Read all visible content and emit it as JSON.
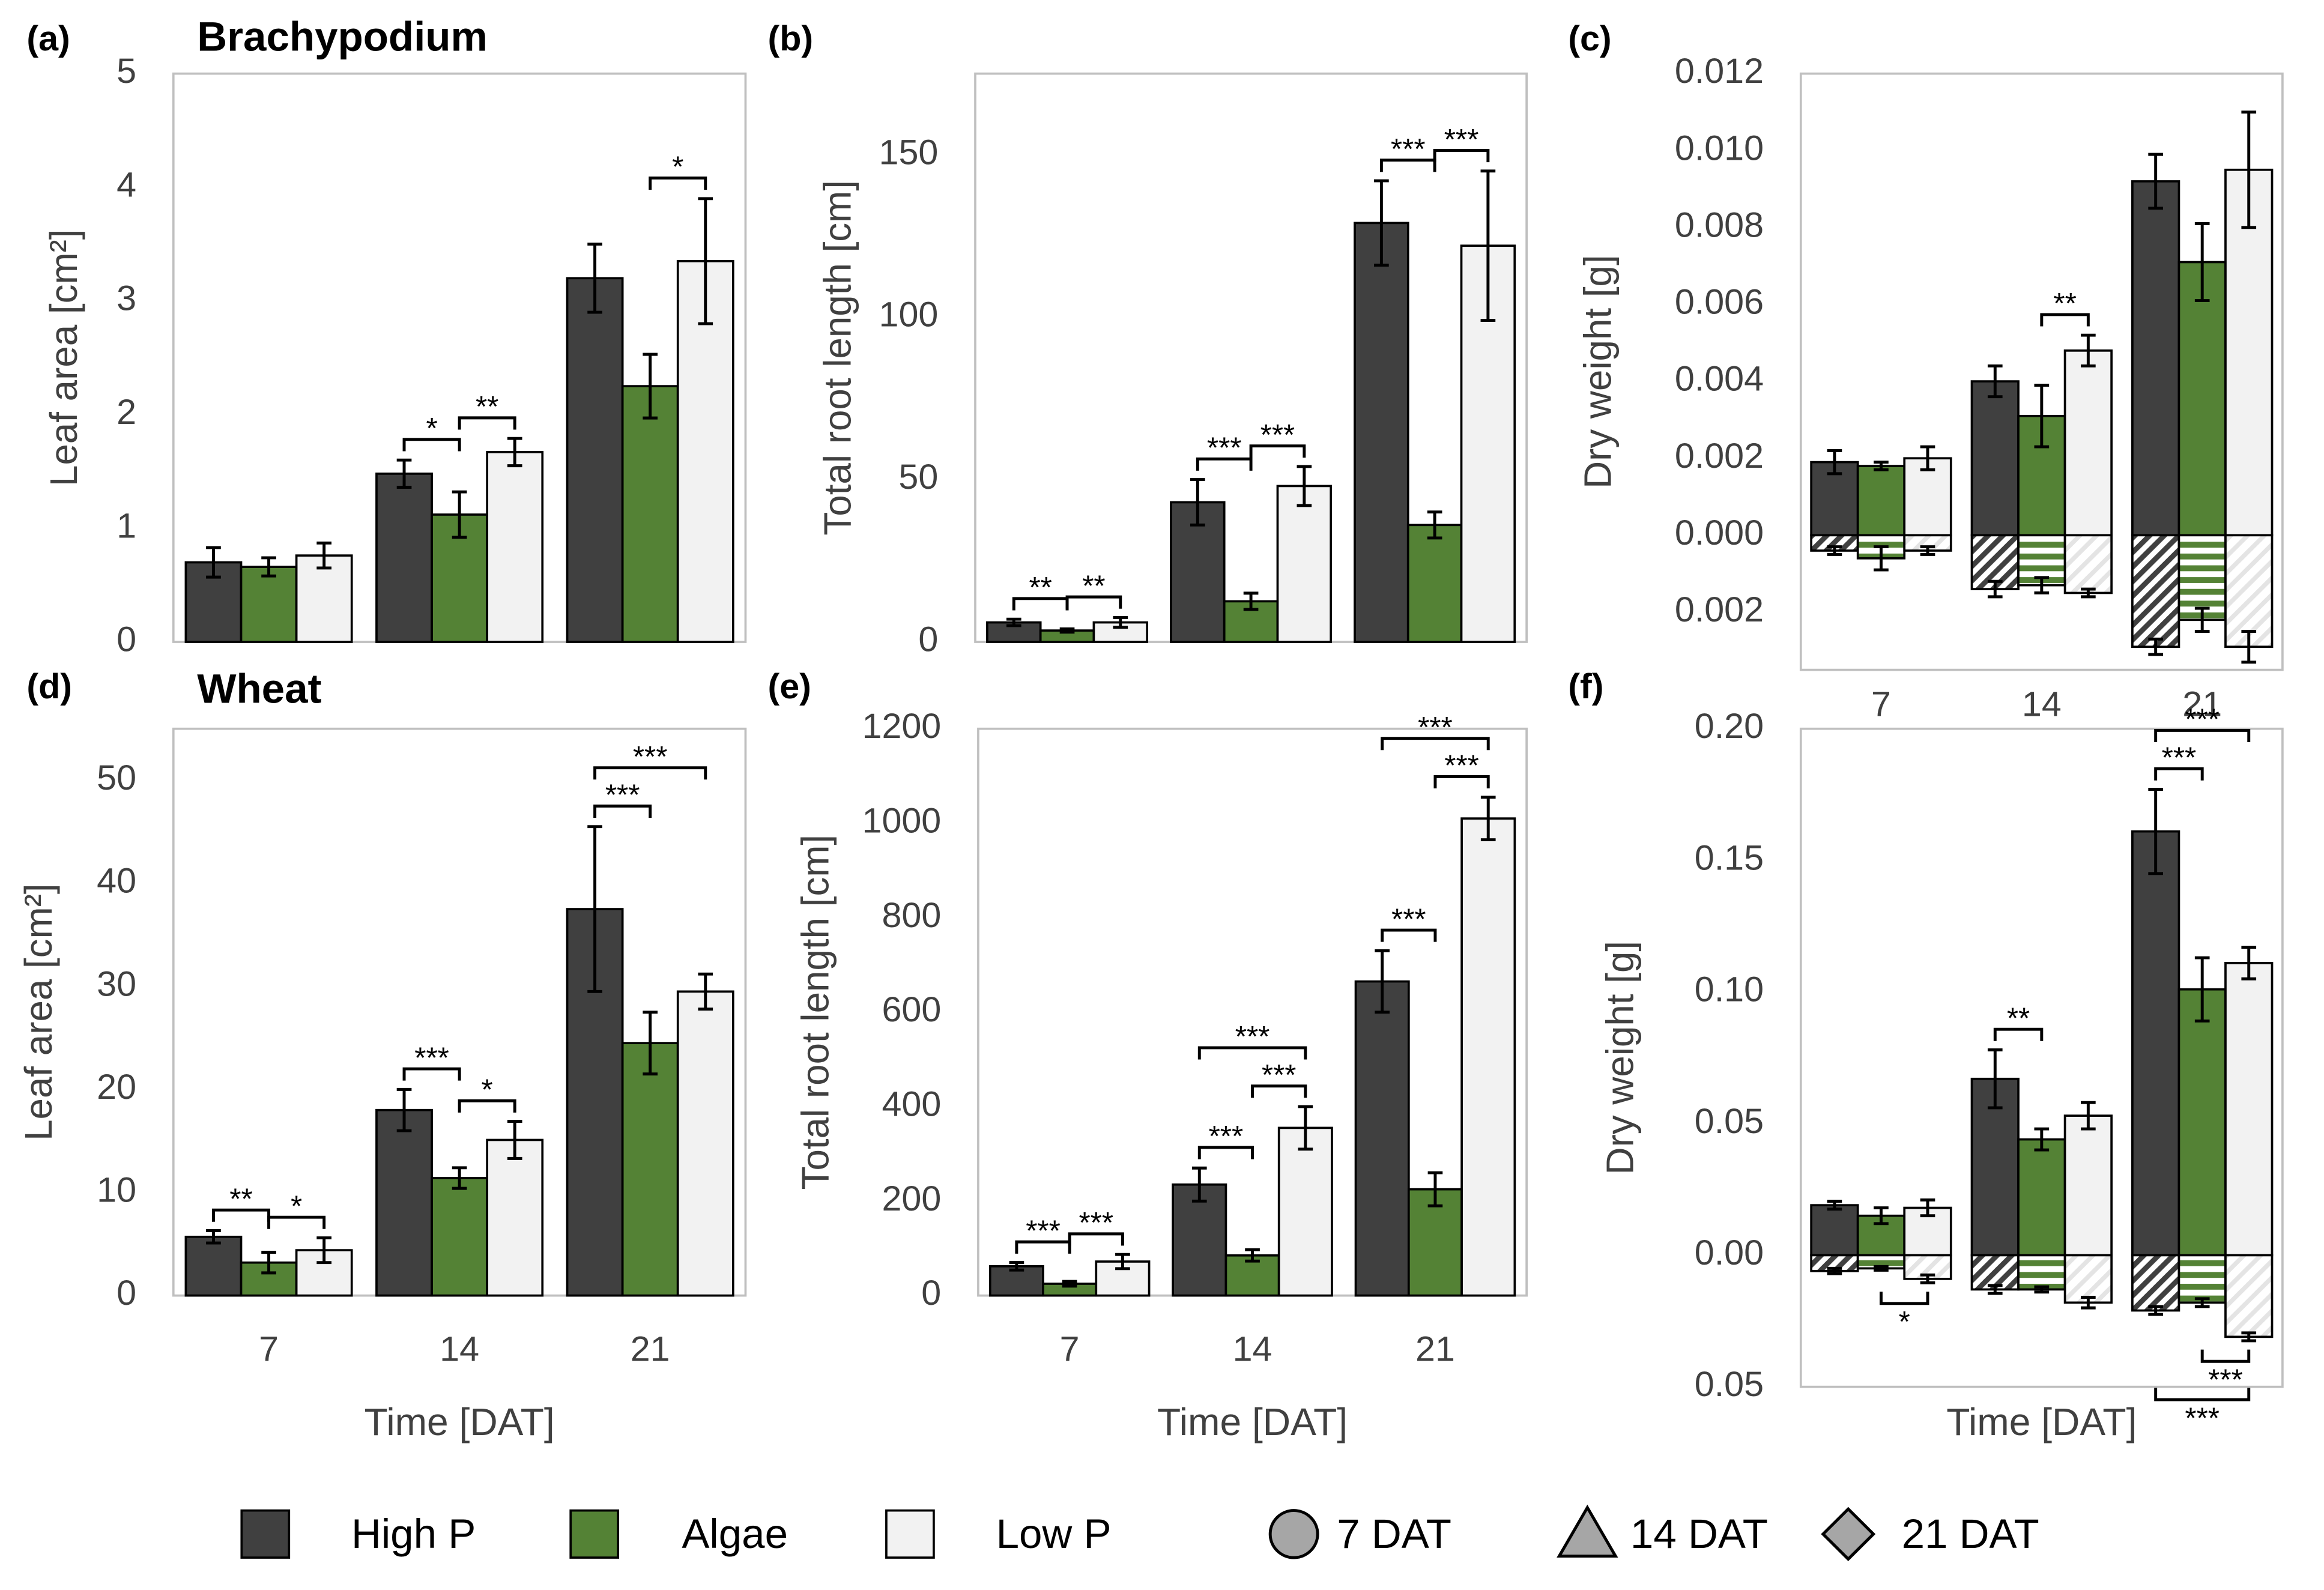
{
  "chart_data": [
    {
      "type": "bar",
      "label": "(a)",
      "title": "Brachypodium",
      "ylabel": "Leaf area [cm²]",
      "categories": [
        null,
        null,
        null
      ],
      "ylim": [
        0,
        5
      ],
      "yticks": [
        0,
        1,
        2,
        3,
        4,
        5
      ],
      "grid": false,
      "series": [
        {
          "values": [
            0.7,
            1.48,
            3.2
          ],
          "errors": [
            0.13,
            0.12,
            0.3
          ]
        },
        {
          "values": [
            0.66,
            1.12,
            2.25
          ],
          "errors": [
            0.08,
            0.2,
            0.28
          ]
        },
        {
          "values": [
            0.76,
            1.67,
            3.35
          ],
          "errors": [
            0.11,
            0.12,
            0.55
          ]
        }
      ],
      "annotations": [
        {
          "group": 1,
          "pair": [
            0,
            1
          ],
          "text": "*",
          "side": "above"
        },
        {
          "group": 1,
          "pair": [
            1,
            2
          ],
          "text": "**",
          "side": "above"
        },
        {
          "group": 2,
          "pair": [
            1,
            2
          ],
          "text": "*",
          "side": "above"
        }
      ]
    },
    {
      "type": "bar",
      "label": "(b)",
      "ylabel": "Total root length [cm]",
      "categories": [
        null,
        null,
        null
      ],
      "ylim": [
        0,
        175
      ],
      "yticks": [
        0,
        50,
        100,
        150
      ],
      "grid": false,
      "series": [
        {
          "values": [
            6,
            43,
            129
          ],
          "errors": [
            1,
            7,
            13
          ]
        },
        {
          "values": [
            3.5,
            12.5,
            36
          ],
          "errors": [
            0.5,
            2.5,
            4
          ]
        },
        {
          "values": [
            6,
            48,
            122
          ],
          "errors": [
            1.5,
            6,
            23
          ]
        }
      ],
      "annotations": [
        {
          "group": 0,
          "pair": [
            0,
            1
          ],
          "text": "**",
          "side": "above"
        },
        {
          "group": 0,
          "pair": [
            1,
            2
          ],
          "text": "**",
          "side": "above"
        },
        {
          "group": 1,
          "pair": [
            0,
            1
          ],
          "text": "***",
          "side": "above"
        },
        {
          "group": 1,
          "pair": [
            1,
            2
          ],
          "text": "***",
          "side": "above"
        },
        {
          "group": 2,
          "pair": [
            0,
            1
          ],
          "text": "***",
          "side": "above"
        },
        {
          "group": 2,
          "pair": [
            1,
            2
          ],
          "text": "***",
          "side": "above"
        }
      ]
    },
    {
      "type": "bar",
      "label": "(c)",
      "ylabel": "Dry weight [g]",
      "categories": [
        "7",
        "14",
        "21"
      ],
      "ylim": [
        -0.0035,
        0.012
      ],
      "yticks": [
        {
          "value": -0.002,
          "label": "0.002"
        },
        {
          "value": 0,
          "label": "0.000"
        },
        0.002,
        0.004,
        0.006,
        0.008,
        {
          "value": 0.01,
          "label": "0.010"
        },
        0.012
      ],
      "grid": false,
      "series": [
        {
          "values": [
            0.0019,
            0.004,
            0.0092
          ],
          "errors": [
            0.0003,
            0.0004,
            0.0007
          ]
        },
        {
          "values": [
            0.0018,
            0.0031,
            0.0071
          ],
          "errors": [
            0.0001,
            0.0008,
            0.001
          ]
        },
        {
          "values": [
            0.002,
            0.0048,
            0.0095
          ],
          "errors": [
            0.0003,
            0.0004,
            0.0015
          ]
        }
      ],
      "root_series": [
        {
          "values": [
            -0.0004,
            -0.0014,
            -0.0029
          ],
          "errors": [
            0.0001,
            0.0002,
            0.0002
          ]
        },
        {
          "values": [
            -0.0006,
            -0.0013,
            -0.0022
          ],
          "errors": [
            0.0003,
            0.0002,
            0.0003
          ]
        },
        {
          "values": [
            -0.0004,
            -0.0015,
            -0.0029
          ],
          "errors": [
            0.0001,
            0.0001,
            0.0004
          ]
        }
      ],
      "annotations": [
        {
          "group": 1,
          "pair": [
            1,
            2
          ],
          "text": "**",
          "side": "above"
        }
      ]
    },
    {
      "type": "bar",
      "label": "(d)",
      "title": "Wheat",
      "ylabel": "Leaf area [cm²]",
      "xlabel": "Time [DAT]",
      "categories": [
        "7",
        "14",
        "21"
      ],
      "ylim": [
        0,
        55
      ],
      "yticks": [
        0,
        10,
        20,
        30,
        40,
        50
      ],
      "grid": false,
      "series": [
        {
          "values": [
            5.7,
            18,
            37.5
          ],
          "errors": [
            0.6,
            2,
            8
          ]
        },
        {
          "values": [
            3.2,
            11.4,
            24.5
          ],
          "errors": [
            1,
            1,
            3
          ]
        },
        {
          "values": [
            4.4,
            15.1,
            29.5
          ],
          "errors": [
            1.2,
            1.8,
            1.7
          ]
        }
      ],
      "annotations": [
        {
          "group": 0,
          "pair": [
            0,
            1
          ],
          "text": "**",
          "side": "above"
        },
        {
          "group": 0,
          "pair": [
            1,
            2
          ],
          "text": "*",
          "side": "above"
        },
        {
          "group": 1,
          "pair": [
            0,
            1
          ],
          "text": "***",
          "side": "above"
        },
        {
          "group": 1,
          "pair": [
            1,
            2
          ],
          "text": "*",
          "side": "above"
        },
        {
          "group": 2,
          "pair": [
            0,
            1
          ],
          "text": "***",
          "side": "above"
        },
        {
          "group": 2,
          "pair": [
            0,
            2
          ],
          "text": "***",
          "side": "above"
        }
      ]
    },
    {
      "type": "bar",
      "label": "(e)",
      "ylabel": "Total root length [cm]",
      "xlabel": "Time [DAT]",
      "categories": [
        "7",
        "14",
        "21"
      ],
      "ylim": [
        0,
        1200
      ],
      "yticks": [
        0,
        200,
        400,
        600,
        800,
        1000,
        1200
      ],
      "grid": false,
      "series": [
        {
          "values": [
            62,
            235,
            665
          ],
          "errors": [
            8,
            35,
            65
          ]
        },
        {
          "values": [
            25,
            85,
            225
          ],
          "errors": [
            5,
            12,
            35
          ]
        },
        {
          "values": [
            72,
            355,
            1010
          ],
          "errors": [
            15,
            45,
            45
          ]
        }
      ],
      "annotations": [
        {
          "group": 0,
          "pair": [
            0,
            1
          ],
          "text": "***",
          "side": "above"
        },
        {
          "group": 0,
          "pair": [
            1,
            2
          ],
          "text": "***",
          "side": "above"
        },
        {
          "group": 1,
          "pair": [
            0,
            1
          ],
          "text": "***",
          "side": "above"
        },
        {
          "group": 1,
          "pair": [
            1,
            2
          ],
          "text": "***",
          "side": "above"
        },
        {
          "group": 1,
          "pair": [
            0,
            2
          ],
          "text": "***",
          "side": "above"
        },
        {
          "group": 2,
          "pair": [
            0,
            1
          ],
          "text": "***",
          "side": "above"
        },
        {
          "group": 2,
          "pair": [
            1,
            2
          ],
          "text": "***",
          "side": "above"
        },
        {
          "group": 2,
          "pair": [
            0,
            2
          ],
          "text": "***",
          "side": "above"
        }
      ]
    },
    {
      "type": "bar",
      "label": "(f)",
      "ylabel": "Dry weight [g]",
      "xlabel": "Time [DAT]",
      "categories": [
        null,
        null,
        null
      ],
      "ylim": [
        -0.05,
        0.2
      ],
      "yticks": [
        {
          "value": -0.05,
          "label": "0.05"
        },
        {
          "value": 0,
          "label": "0.00"
        },
        0.05,
        {
          "value": 0.1,
          "label": "0.10"
        },
        0.15,
        {
          "value": 0.2,
          "label": "0.20"
        }
      ],
      "grid": false,
      "series": [
        {
          "values": [
            0.019,
            0.067,
            0.161
          ],
          "errors": [
            0.0015,
            0.011,
            0.016
          ]
        },
        {
          "values": [
            0.015,
            0.044,
            0.101
          ],
          "errors": [
            0.003,
            0.004,
            0.012
          ]
        },
        {
          "values": [
            0.018,
            0.053,
            0.111
          ],
          "errors": [
            0.003,
            0.005,
            0.006
          ]
        }
      ],
      "root_series": [
        {
          "values": [
            -0.006,
            -0.013,
            -0.021
          ],
          "errors": [
            0.001,
            0.0015,
            0.0015
          ]
        },
        {
          "values": [
            -0.005,
            -0.013,
            -0.018
          ],
          "errors": [
            0.0007,
            0.001,
            0.0015
          ]
        },
        {
          "values": [
            -0.009,
            -0.018,
            -0.031
          ],
          "errors": [
            0.0015,
            0.002,
            0.0015
          ]
        }
      ],
      "annotations": [
        {
          "group": 1,
          "pair": [
            0,
            1
          ],
          "text": "**",
          "side": "above"
        },
        {
          "group": 2,
          "pair": [
            0,
            1
          ],
          "text": "***",
          "side": "above"
        },
        {
          "group": 2,
          "pair": [
            0,
            2
          ],
          "text": "***",
          "side": "above"
        },
        {
          "group": 0,
          "pair": [
            1,
            2
          ],
          "text": "*",
          "side": "below"
        },
        {
          "group": 2,
          "pair": [
            1,
            2
          ],
          "text": "***",
          "side": "below"
        },
        {
          "group": 2,
          "pair": [
            0,
            2
          ],
          "text": "***",
          "side": "below"
        }
      ]
    }
  ],
  "legend": {
    "items": [
      {
        "name": "High P",
        "color": "#404040"
      },
      {
        "name": "Algae",
        "color": "#548235"
      },
      {
        "name": "Low P",
        "color": "#f2f2f2"
      }
    ],
    "markers": [
      {
        "name": "7 DAT",
        "shape": "circle"
      },
      {
        "name": "14 DAT",
        "shape": "triangle"
      },
      {
        "name": "21 DAT",
        "shape": "diamond"
      }
    ]
  }
}
